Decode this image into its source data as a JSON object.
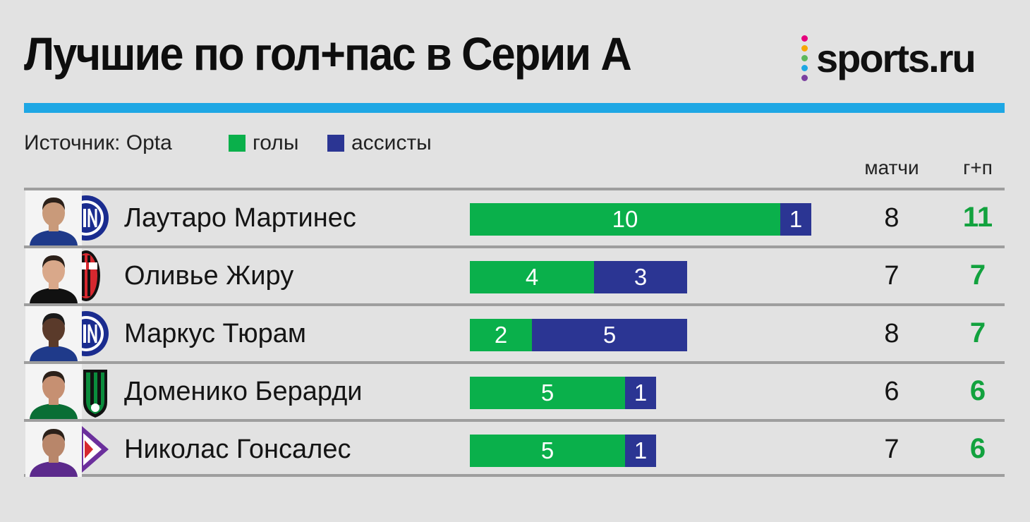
{
  "header": {
    "title": "Лучшие по гол+пас в Серии А",
    "logo_text": "sports.ru"
  },
  "logo_dot_colors": [
    "#e6007e",
    "#f7a600",
    "#5cb85c",
    "#1ea7e4",
    "#7b3fa0"
  ],
  "legend": {
    "source": "Источник: Opta",
    "goals_label": "голы",
    "assists_label": "ассисты",
    "goals_color": "#0ab04b",
    "assists_color": "#2b3593"
  },
  "columns": {
    "matches": "матчи",
    "total": "г+п"
  },
  "chart_data": {
    "type": "bar",
    "orientation": "horizontal",
    "stacked": true,
    "categories": [
      "Лаутаро Мартинес",
      "Оливье Жиру",
      "Маркус Тюрам",
      "Доменико Берарди",
      "Николас Гонсалес"
    ],
    "series": [
      {
        "name": "голы",
        "values": [
          10,
          4,
          2,
          5,
          5
        ],
        "color": "#0ab04b"
      },
      {
        "name": "ассисты",
        "values": [
          1,
          3,
          5,
          1,
          1
        ],
        "color": "#2b3593"
      }
    ],
    "title": "Лучшие по гол+пас в Серии А",
    "xlabel": "",
    "ylabel": ""
  },
  "players": [
    {
      "name": "Лаутаро Мартинес",
      "team_icon": "inter-crest-icon",
      "goals": 10,
      "assists": 1,
      "matches": "8",
      "total": "11"
    },
    {
      "name": "Оливье Жиру",
      "team_icon": "milan-crest-icon",
      "goals": 4,
      "assists": 3,
      "matches": "7",
      "total": "7"
    },
    {
      "name": "Маркус Тюрам",
      "team_icon": "inter-crest-icon",
      "goals": 2,
      "assists": 5,
      "matches": "8",
      "total": "7"
    },
    {
      "name": "Доменико Берарди",
      "team_icon": "sassuolo-crest-icon",
      "goals": 5,
      "assists": 1,
      "matches": "6",
      "total": "6"
    },
    {
      "name": "Николас Гонсалес",
      "team_icon": "fiorentina-crest-icon",
      "goals": 5,
      "assists": 1,
      "matches": "7",
      "total": "6"
    }
  ]
}
